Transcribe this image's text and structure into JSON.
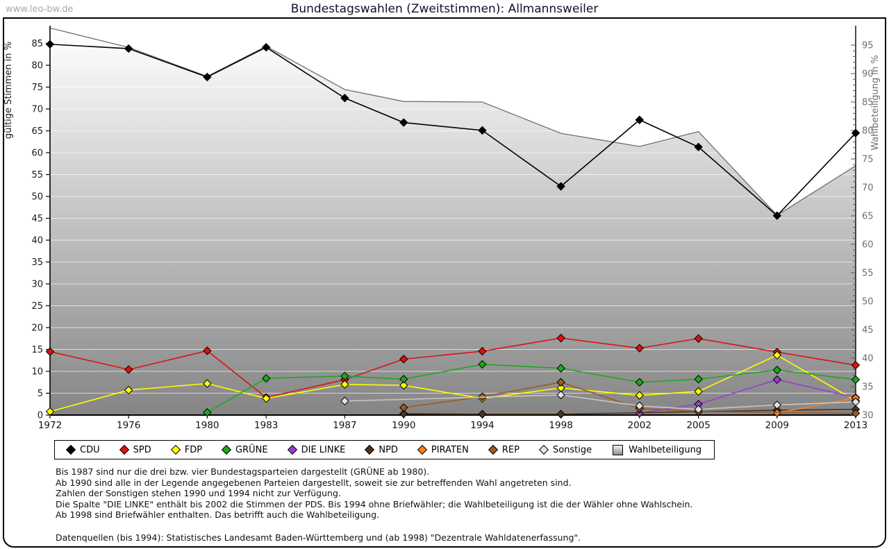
{
  "page": {
    "watermark": "www.leo-bw.de",
    "title": "Bundestagswahlen (Zweitstimmen): Allmannsweiler"
  },
  "chart_data": {
    "type": "line",
    "title": "Bundestagswahlen (Zweitstimmen): Allmannsweiler",
    "x": [
      1972,
      1976,
      1980,
      1983,
      1987,
      1990,
      1994,
      1998,
      2002,
      2005,
      2009,
      2013
    ],
    "xlabel": "",
    "ylabel_left": "gültige Stimmen in %",
    "ylabel_right": "Wahlbeteiligung in %",
    "ylim_left": [
      0,
      85
    ],
    "ylim_right": [
      30,
      95
    ],
    "ytick_step": 5,
    "grid": true,
    "legend_position": "bottom",
    "series": [
      {
        "name": "Wahlbeteiligung",
        "axis": "right",
        "type": "area",
        "color": "#6f6f6f",
        "values": [
          98.0,
          94.6,
          89.5,
          94.8,
          87.2,
          85.1,
          85.0,
          79.5,
          77.2,
          79.8,
          65.1,
          73.8
        ]
      },
      {
        "name": "CDU",
        "axis": "left",
        "type": "line",
        "color": "#000000",
        "values": [
          84.8,
          83.8,
          77.3,
          84.1,
          72.5,
          66.9,
          65.1,
          52.3,
          67.5,
          61.3,
          45.6,
          64.5
        ]
      },
      {
        "name": "SPD",
        "axis": "left",
        "type": "line",
        "color": "#dd1111",
        "values": [
          14.5,
          10.4,
          14.7,
          4.0,
          8.1,
          12.8,
          14.6,
          17.6,
          15.3,
          17.5,
          14.4,
          11.4
        ]
      },
      {
        "name": "FDP",
        "axis": "left",
        "type": "line",
        "color": "#ffff00",
        "values": [
          0.8,
          5.7,
          7.2,
          3.8,
          7.0,
          6.8,
          3.8,
          6.2,
          4.5,
          5.4,
          13.7,
          3.3
        ]
      },
      {
        "name": "GRÜNE",
        "axis": "left",
        "type": "line",
        "color": "#1ca81c",
        "values": [
          null,
          null,
          0.6,
          8.4,
          8.9,
          8.2,
          11.6,
          10.7,
          7.5,
          8.2,
          10.3,
          8.1
        ]
      },
      {
        "name": "DIE LINKE",
        "axis": "left",
        "type": "line",
        "color": "#9a3bd4",
        "values": [
          null,
          null,
          null,
          null,
          null,
          null,
          null,
          null,
          0.4,
          2.5,
          8.1,
          4.0
        ]
      },
      {
        "name": "NPD",
        "axis": "left",
        "type": "line",
        "color": "#4a3420",
        "values": [
          null,
          null,
          null,
          null,
          null,
          0.3,
          0.2,
          0.2,
          null,
          null,
          1.1,
          1.3
        ]
      },
      {
        "name": "PIRATEN",
        "axis": "left",
        "type": "line",
        "color": "#f58220",
        "values": [
          null,
          null,
          null,
          null,
          null,
          null,
          null,
          null,
          null,
          null,
          0.5,
          3.9
        ]
      },
      {
        "name": "REP",
        "axis": "left",
        "type": "line",
        "color": "#9b5a24",
        "values": [
          null,
          null,
          null,
          null,
          null,
          1.7,
          4.2,
          7.5,
          1.5,
          0.8,
          null,
          0.4
        ]
      },
      {
        "name": "Sonstige",
        "axis": "left",
        "type": "line",
        "color": "#c8c8c8",
        "values": [
          null,
          null,
          null,
          null,
          3.2,
          null,
          null,
          4.6,
          2.1,
          1.3,
          2.3,
          3.0
        ]
      }
    ]
  },
  "legend": {
    "items": [
      {
        "label": "CDU",
        "marker": "diamond",
        "color": "#000000"
      },
      {
        "label": "SPD",
        "marker": "diamond",
        "color": "#dd1111"
      },
      {
        "label": "FDP",
        "marker": "diamond",
        "color": "#ffff00"
      },
      {
        "label": "GRÜNE",
        "marker": "diamond",
        "color": "#1ca81c"
      },
      {
        "label": "DIE LINKE",
        "marker": "diamond",
        "color": "#9a3bd4"
      },
      {
        "label": "NPD",
        "marker": "diamond",
        "color": "#4a3420"
      },
      {
        "label": "PIRATEN",
        "marker": "diamond",
        "color": "#f58220"
      },
      {
        "label": "REP",
        "marker": "diamond",
        "color": "#9b5a24"
      },
      {
        "label": "Sonstige",
        "marker": "diamond",
        "color": "#e2e2e2"
      },
      {
        "label": "Wahlbeteiligung",
        "marker": "square",
        "color": "#b5b5b5"
      }
    ]
  },
  "footnotes": [
    "Bis 1987 sind nur die drei bzw. vier Bundestagsparteien dargestellt (GRÜNE ab 1980).",
    "Ab 1990 sind alle in der Legende angegebenen Parteien dargestellt, soweit sie zur betreffenden Wahl angetreten sind.",
    "Zahlen der Sonstigen stehen 1990 und 1994 nicht zur Verfügung.",
    "Die Spalte \"DIE LINKE\" enthält bis 2002 die Stimmen der PDS. Bis 1994 ohne Briefwähler; die Wahlbeteiligung ist die der Wähler ohne Wahlschein.",
    "Ab 1998 sind Briefwähler enthalten. Das betrifft auch die Wahlbeteiligung.",
    "Datenquellen (bis 1994): Statistisches Landesamt Baden-Württemberg und (ab 1998) \"Dezentrale Wahldatenerfassung\"."
  ]
}
